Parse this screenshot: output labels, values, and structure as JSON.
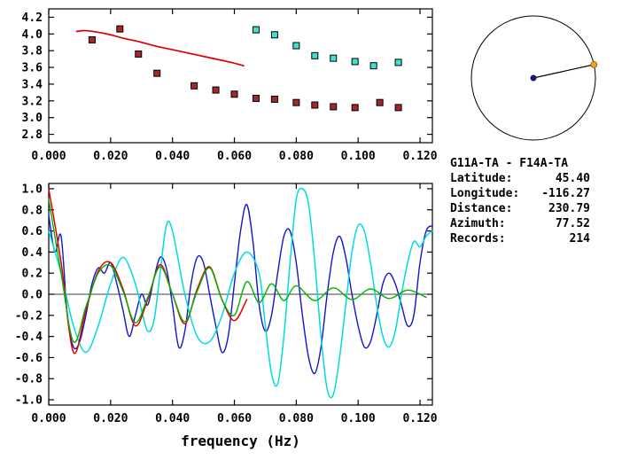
{
  "info": {
    "title": "G11A-TA - F14A-TA",
    "fields": [
      {
        "label": "Latitude:",
        "value": "45.40"
      },
      {
        "label": "Longitude:",
        "value": "-116.27"
      },
      {
        "label": "Distance:",
        "value": "230.79"
      },
      {
        "label": "Azimuth:",
        "value": "77.52"
      },
      {
        "label": "Records:",
        "value": "214"
      }
    ]
  },
  "compass": {
    "azimuth_deg": 77.52,
    "circle_color": "#000000",
    "line_color": "#000000",
    "center_dot_color": "#191970",
    "edge_dot_color": "#f0a020"
  },
  "chart_data": [
    {
      "id": "dispersion-chart",
      "type": "scatter",
      "title": "",
      "xlabel": "",
      "ylabel": "",
      "xlim": [
        0,
        0.124
      ],
      "ylim": [
        2.7,
        4.3
      ],
      "xticks": [
        0,
        0.02,
        0.04,
        0.06,
        0.08,
        0.1,
        0.12
      ],
      "xtick_labels": [
        "0.000",
        "0.020",
        "0.040",
        "0.060",
        "0.080",
        "0.100",
        "0.120"
      ],
      "yticks": [
        2.8,
        3.0,
        3.2,
        3.4,
        3.6,
        3.8,
        4.0,
        4.2
      ],
      "ytick_labels": [
        "2.8",
        "3.0",
        "3.2",
        "3.4",
        "3.6",
        "3.8",
        "4.0",
        "4.2"
      ],
      "grid": false,
      "series": [
        {
          "name": "measured-velocity-red-squares",
          "type": "scatter",
          "marker": "square",
          "color": "#a52828",
          "points": [
            [
              0.014,
              3.93
            ],
            [
              0.023,
              4.06
            ],
            [
              0.029,
              3.76
            ],
            [
              0.035,
              3.53
            ],
            [
              0.047,
              3.38
            ],
            [
              0.054,
              3.33
            ],
            [
              0.06,
              3.28
            ],
            [
              0.067,
              3.23
            ],
            [
              0.073,
              3.22
            ],
            [
              0.08,
              3.18
            ],
            [
              0.086,
              3.15
            ],
            [
              0.092,
              3.13
            ],
            [
              0.099,
              3.12
            ],
            [
              0.107,
              3.18
            ],
            [
              0.113,
              3.12
            ]
          ]
        },
        {
          "name": "measured-velocity-cyan-squares",
          "type": "scatter",
          "marker": "square",
          "color": "#40e0d0",
          "points": [
            [
              0.067,
              4.05
            ],
            [
              0.073,
              3.99
            ],
            [
              0.08,
              3.86
            ],
            [
              0.086,
              3.74
            ],
            [
              0.092,
              3.71
            ],
            [
              0.099,
              3.67
            ],
            [
              0.105,
              3.62
            ],
            [
              0.113,
              3.66
            ]
          ]
        },
        {
          "name": "reference-dispersion-curve",
          "type": "line",
          "color": "#dd0000",
          "width": 1.7,
          "points": [
            [
              0.009,
              4.03
            ],
            [
              0.012,
              4.04
            ],
            [
              0.016,
              4.02
            ],
            [
              0.02,
              3.99
            ],
            [
              0.024,
              3.95
            ],
            [
              0.029,
              3.91
            ],
            [
              0.034,
              3.86
            ],
            [
              0.039,
              3.82
            ],
            [
              0.044,
              3.78
            ],
            [
              0.049,
              3.74
            ],
            [
              0.054,
              3.7
            ],
            [
              0.059,
              3.66
            ],
            [
              0.063,
              3.62
            ]
          ]
        }
      ]
    },
    {
      "id": "waveform-chart",
      "type": "line",
      "title": "",
      "xlabel": "frequency (Hz)",
      "ylabel": "",
      "xlim": [
        0,
        0.124
      ],
      "ylim": [
        -1.05,
        1.05
      ],
      "xticks": [
        0,
        0.02,
        0.04,
        0.06,
        0.08,
        0.1,
        0.12
      ],
      "xtick_labels": [
        "0.000",
        "0.020",
        "0.040",
        "0.060",
        "0.080",
        "0.100",
        "0.120"
      ],
      "yticks": [
        -1.0,
        -0.8,
        -0.6,
        -0.4,
        -0.2,
        0.0,
        0.2,
        0.4,
        0.6,
        0.8,
        1.0
      ],
      "ytick_labels": [
        "-1.0",
        "-0.8",
        "-0.6",
        "-0.4",
        "-0.2",
        "0.0",
        "0.2",
        "0.4",
        "0.6",
        "0.8",
        "1.0"
      ],
      "zero_line": true,
      "grid": false,
      "series": [
        {
          "name": "cross-spectrum-blue",
          "type": "line",
          "color": "#1414cd",
          "width": 1.4,
          "points": [
            [
              0,
              0.75
            ],
            [
              0.002,
              0.4
            ],
            [
              0.004,
              0.55
            ],
            [
              0.006,
              -0.2
            ],
            [
              0.008,
              -0.5
            ],
            [
              0.01,
              -0.45
            ],
            [
              0.012,
              -0.2
            ],
            [
              0.014,
              0.1
            ],
            [
              0.016,
              0.25
            ],
            [
              0.018,
              0.2
            ],
            [
              0.02,
              0.3
            ],
            [
              0.022,
              0.1
            ],
            [
              0.024,
              -0.15
            ],
            [
              0.026,
              -0.4
            ],
            [
              0.028,
              -0.2
            ],
            [
              0.03,
              0.0
            ],
            [
              0.032,
              -0.1
            ],
            [
              0.034,
              0.15
            ],
            [
              0.036,
              0.35
            ],
            [
              0.038,
              0.25
            ],
            [
              0.04,
              -0.1
            ],
            [
              0.042,
              -0.5
            ],
            [
              0.044,
              -0.35
            ],
            [
              0.046,
              0.1
            ],
            [
              0.048,
              0.35
            ],
            [
              0.05,
              0.3
            ],
            [
              0.052,
              0.0
            ],
            [
              0.054,
              -0.3
            ],
            [
              0.056,
              -0.55
            ],
            [
              0.058,
              -0.4
            ],
            [
              0.06,
              0.1
            ],
            [
              0.062,
              0.6
            ],
            [
              0.064,
              0.85
            ],
            [
              0.066,
              0.5
            ],
            [
              0.068,
              -0.1
            ],
            [
              0.07,
              -0.35
            ],
            [
              0.072,
              -0.2
            ],
            [
              0.074,
              0.2
            ],
            [
              0.076,
              0.55
            ],
            [
              0.078,
              0.6
            ],
            [
              0.08,
              0.3
            ],
            [
              0.082,
              -0.2
            ],
            [
              0.084,
              -0.6
            ],
            [
              0.086,
              -0.75
            ],
            [
              0.088,
              -0.5
            ],
            [
              0.09,
              0.0
            ],
            [
              0.092,
              0.4
            ],
            [
              0.094,
              0.55
            ],
            [
              0.096,
              0.35
            ],
            [
              0.098,
              0.0
            ],
            [
              0.1,
              -0.3
            ],
            [
              0.102,
              -0.5
            ],
            [
              0.104,
              -0.45
            ],
            [
              0.106,
              -0.2
            ],
            [
              0.108,
              0.1
            ],
            [
              0.11,
              0.2
            ],
            [
              0.112,
              0.1
            ],
            [
              0.114,
              -0.1
            ],
            [
              0.116,
              -0.3
            ],
            [
              0.118,
              -0.2
            ],
            [
              0.12,
              0.3
            ],
            [
              0.122,
              0.6
            ],
            [
              0.124,
              0.65
            ]
          ]
        },
        {
          "name": "cross-spectrum-cyan",
          "type": "line",
          "color": "#00dcdc",
          "width": 1.5,
          "points": [
            [
              0,
              0.6
            ],
            [
              0.004,
              0.2
            ],
            [
              0.008,
              -0.3
            ],
            [
              0.012,
              -0.55
            ],
            [
              0.016,
              -0.3
            ],
            [
              0.02,
              0.1
            ],
            [
              0.024,
              0.35
            ],
            [
              0.028,
              0.1
            ],
            [
              0.03,
              -0.15
            ],
            [
              0.032,
              -0.35
            ],
            [
              0.034,
              -0.25
            ],
            [
              0.036,
              0.2
            ],
            [
              0.038,
              0.65
            ],
            [
              0.04,
              0.6
            ],
            [
              0.044,
              0.0
            ],
            [
              0.048,
              -0.4
            ],
            [
              0.052,
              -0.45
            ],
            [
              0.056,
              -0.2
            ],
            [
              0.06,
              0.2
            ],
            [
              0.064,
              0.4
            ],
            [
              0.068,
              0.2
            ],
            [
              0.07,
              -0.3
            ],
            [
              0.072,
              -0.75
            ],
            [
              0.074,
              -0.85
            ],
            [
              0.076,
              -0.4
            ],
            [
              0.078,
              0.3
            ],
            [
              0.08,
              0.9
            ],
            [
              0.082,
              1.0
            ],
            [
              0.084,
              0.85
            ],
            [
              0.086,
              0.3
            ],
            [
              0.088,
              -0.4
            ],
            [
              0.09,
              -0.9
            ],
            [
              0.092,
              -0.95
            ],
            [
              0.094,
              -0.6
            ],
            [
              0.096,
              -0.1
            ],
            [
              0.098,
              0.4
            ],
            [
              0.1,
              0.65
            ],
            [
              0.102,
              0.6
            ],
            [
              0.104,
              0.3
            ],
            [
              0.106,
              -0.1
            ],
            [
              0.108,
              -0.4
            ],
            [
              0.11,
              -0.5
            ],
            [
              0.112,
              -0.35
            ],
            [
              0.114,
              0.0
            ],
            [
              0.116,
              0.3
            ],
            [
              0.118,
              0.5
            ],
            [
              0.12,
              0.45
            ],
            [
              0.122,
              0.55
            ],
            [
              0.124,
              0.6
            ]
          ]
        },
        {
          "name": "fitted-bessel-red",
          "type": "line",
          "color": "#e00000",
          "width": 1.5,
          "points": [
            [
              0,
              1.0
            ],
            [
              0.004,
              0.3
            ],
            [
              0.008,
              -0.55
            ],
            [
              0.012,
              -0.15
            ],
            [
              0.016,
              0.22
            ],
            [
              0.02,
              0.3
            ],
            [
              0.024,
              0.05
            ],
            [
              0.028,
              -0.3
            ],
            [
              0.032,
              -0.05
            ],
            [
              0.036,
              0.28
            ],
            [
              0.04,
              0.0
            ],
            [
              0.044,
              -0.28
            ],
            [
              0.048,
              0.05
            ],
            [
              0.052,
              0.26
            ],
            [
              0.056,
              -0.05
            ],
            [
              0.06,
              -0.25
            ],
            [
              0.064,
              -0.05
            ]
          ]
        },
        {
          "name": "smoothed-spectrum-green",
          "type": "line",
          "color": "#00b400",
          "width": 1.4,
          "points": [
            [
              0,
              0.9
            ],
            [
              0.004,
              0.2
            ],
            [
              0.008,
              -0.45
            ],
            [
              0.012,
              -0.12
            ],
            [
              0.016,
              0.2
            ],
            [
              0.02,
              0.27
            ],
            [
              0.024,
              0.03
            ],
            [
              0.028,
              -0.27
            ],
            [
              0.032,
              -0.03
            ],
            [
              0.036,
              0.26
            ],
            [
              0.04,
              0.0
            ],
            [
              0.044,
              -0.26
            ],
            [
              0.048,
              0.03
            ],
            [
              0.052,
              0.25
            ],
            [
              0.056,
              -0.05
            ],
            [
              0.06,
              -0.2
            ],
            [
              0.064,
              0.12
            ],
            [
              0.068,
              -0.08
            ],
            [
              0.072,
              0.1
            ],
            [
              0.076,
              -0.06
            ],
            [
              0.08,
              0.08
            ],
            [
              0.086,
              -0.06
            ],
            [
              0.092,
              0.06
            ],
            [
              0.098,
              -0.05
            ],
            [
              0.104,
              0.05
            ],
            [
              0.11,
              -0.04
            ],
            [
              0.116,
              0.04
            ],
            [
              0.122,
              -0.03
            ]
          ]
        }
      ]
    }
  ]
}
